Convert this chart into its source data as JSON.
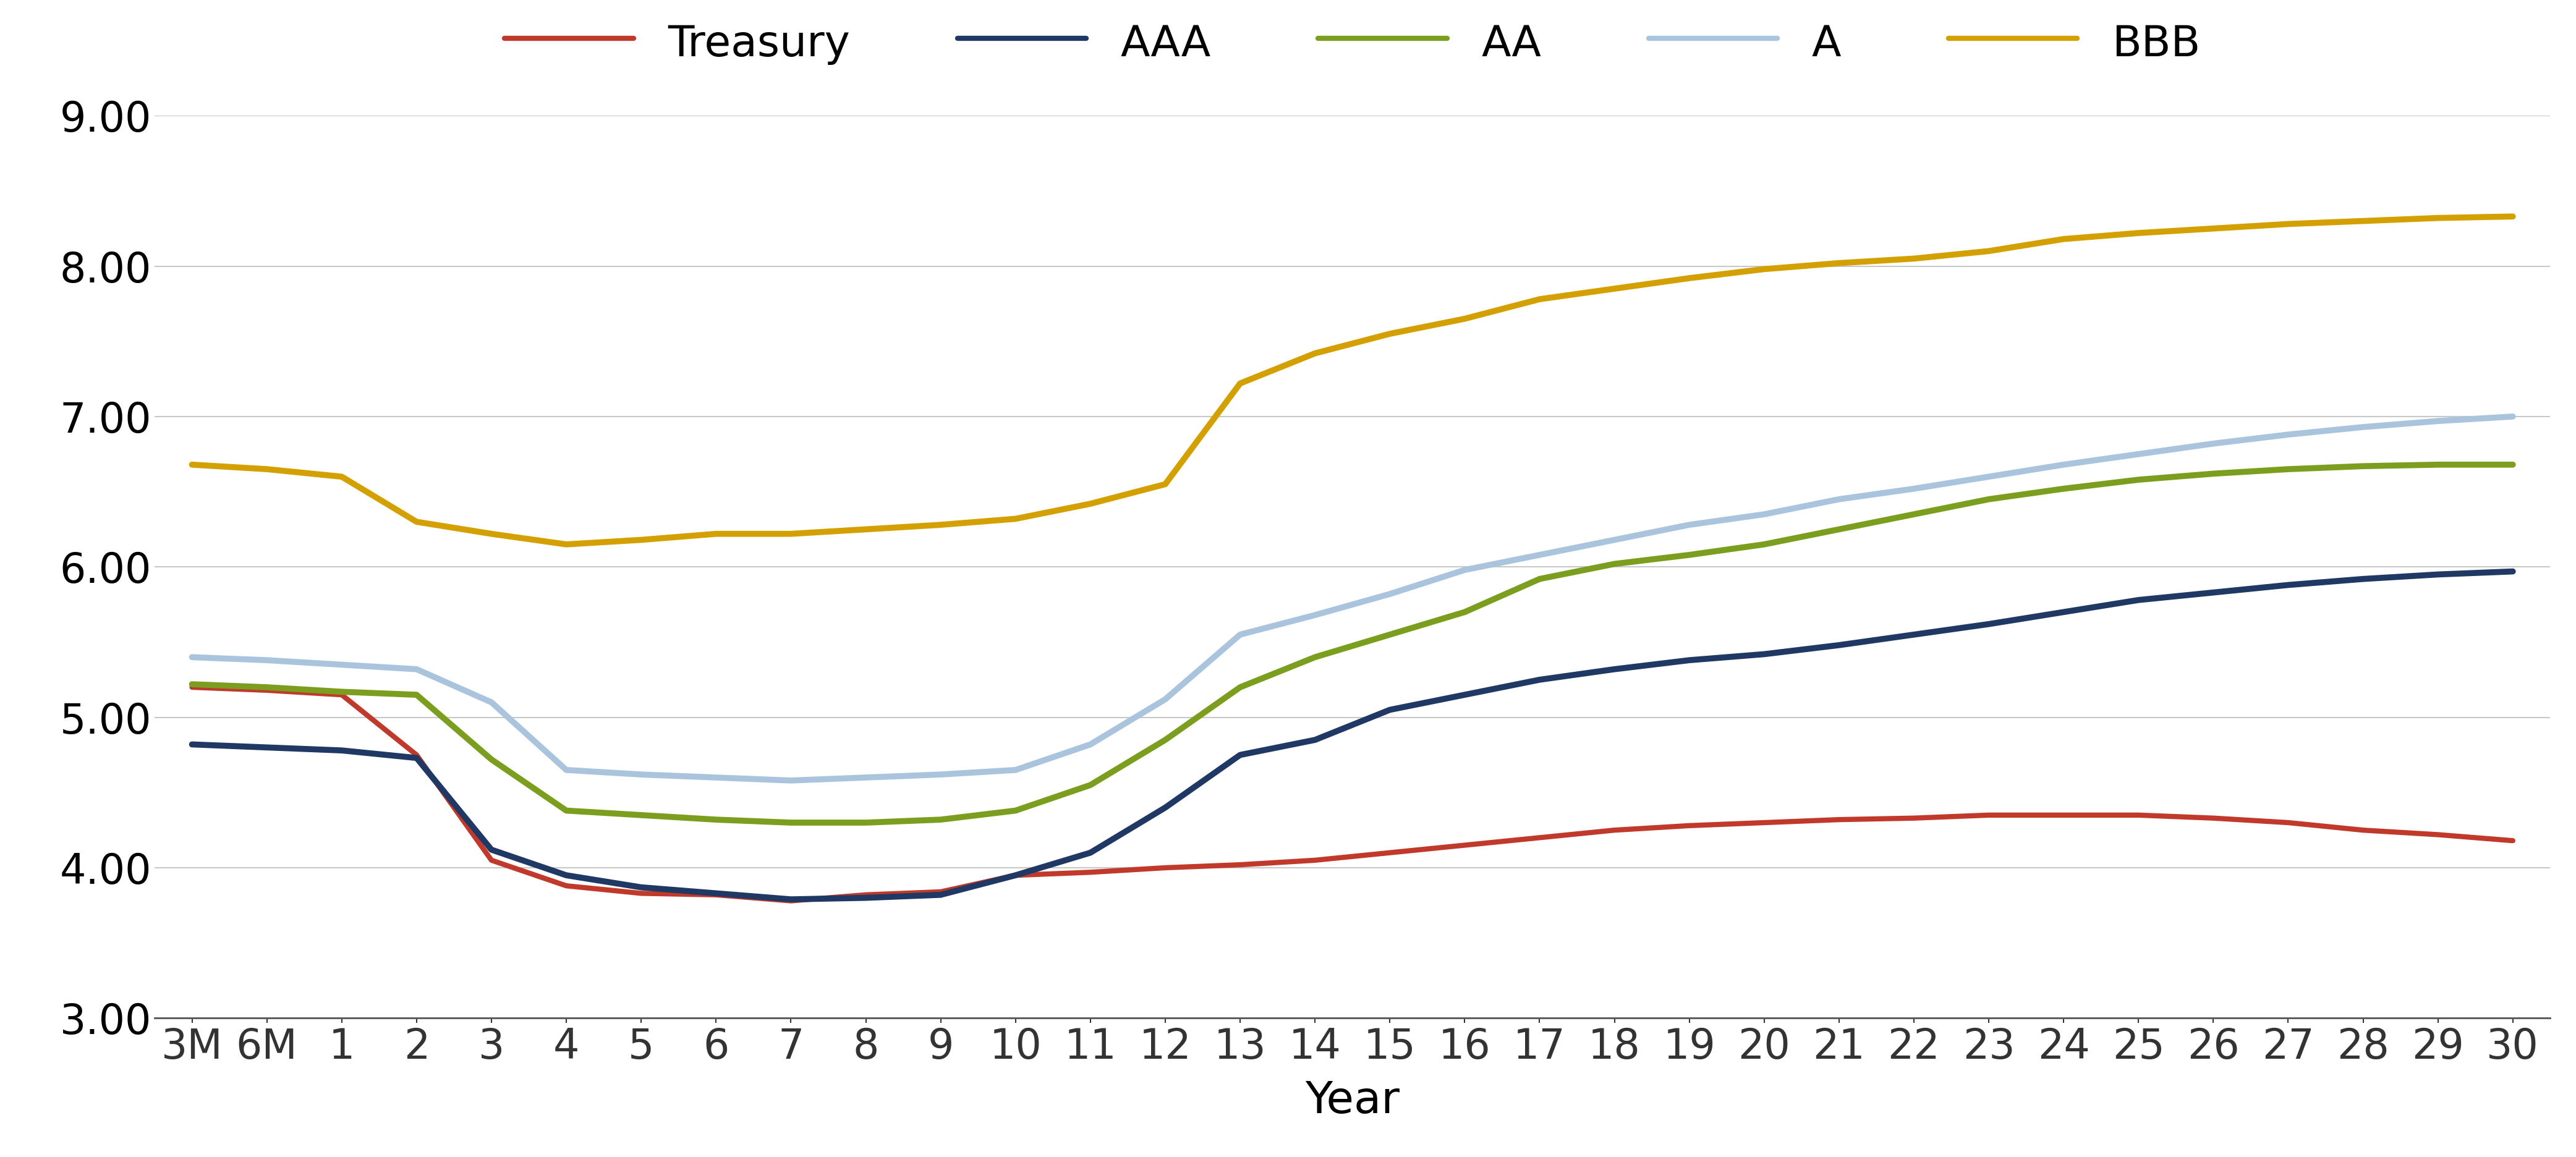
{
  "xlabel": "Year",
  "x_labels": [
    "3M",
    "6M",
    "1",
    "2",
    "3",
    "4",
    "5",
    "6",
    "7",
    "8",
    "9",
    "10",
    "11",
    "12",
    "13",
    "14",
    "15",
    "16",
    "17",
    "18",
    "19",
    "20",
    "21",
    "22",
    "23",
    "24",
    "25",
    "26",
    "27",
    "28",
    "29",
    "30"
  ],
  "ylim": [
    3.0,
    9.0
  ],
  "yticks": [
    3.0,
    4.0,
    5.0,
    6.0,
    7.0,
    8.0,
    9.0
  ],
  "series": {
    "Treasury": {
      "color": "#C0392B",
      "linewidth": 6.0,
      "values": [
        5.2,
        5.18,
        5.15,
        4.75,
        4.05,
        3.88,
        3.83,
        3.82,
        3.78,
        3.82,
        3.84,
        3.95,
        3.97,
        4.0,
        4.02,
        4.05,
        4.1,
        4.15,
        4.2,
        4.25,
        4.28,
        4.3,
        4.32,
        4.33,
        4.35,
        4.35,
        4.35,
        4.33,
        4.3,
        4.25,
        4.22,
        4.18
      ]
    },
    "AAA": {
      "color": "#1F3864",
      "linewidth": 7.0,
      "values": [
        4.82,
        4.8,
        4.78,
        4.73,
        4.12,
        3.95,
        3.87,
        3.83,
        3.79,
        3.8,
        3.82,
        3.95,
        4.1,
        4.4,
        4.75,
        4.85,
        5.05,
        5.15,
        5.25,
        5.32,
        5.38,
        5.42,
        5.48,
        5.55,
        5.62,
        5.7,
        5.78,
        5.83,
        5.88,
        5.92,
        5.95,
        5.97
      ]
    },
    "AA": {
      "color": "#7B9E1E",
      "linewidth": 7.0,
      "values": [
        5.22,
        5.2,
        5.17,
        5.15,
        4.72,
        4.38,
        4.35,
        4.32,
        4.3,
        4.3,
        4.32,
        4.38,
        4.55,
        4.85,
        5.2,
        5.4,
        5.55,
        5.7,
        5.92,
        6.02,
        6.08,
        6.15,
        6.25,
        6.35,
        6.45,
        6.52,
        6.58,
        6.62,
        6.65,
        6.67,
        6.68,
        6.68
      ]
    },
    "A": {
      "color": "#A9C4DC",
      "linewidth": 7.0,
      "values": [
        5.4,
        5.38,
        5.35,
        5.32,
        5.1,
        4.65,
        4.62,
        4.6,
        4.58,
        4.6,
        4.62,
        4.65,
        4.82,
        5.12,
        5.55,
        5.68,
        5.82,
        5.98,
        6.08,
        6.18,
        6.28,
        6.35,
        6.45,
        6.52,
        6.6,
        6.68,
        6.75,
        6.82,
        6.88,
        6.93,
        6.97,
        7.0
      ]
    },
    "BBB": {
      "color": "#D4A000",
      "linewidth": 7.0,
      "values": [
        6.68,
        6.65,
        6.6,
        6.3,
        6.22,
        6.15,
        6.18,
        6.22,
        6.22,
        6.25,
        6.28,
        6.32,
        6.42,
        6.55,
        7.22,
        7.42,
        7.55,
        7.65,
        7.78,
        7.85,
        7.92,
        7.98,
        8.02,
        8.05,
        8.1,
        8.18,
        8.22,
        8.25,
        8.28,
        8.3,
        8.32,
        8.33
      ]
    }
  },
  "legend_order": [
    "Treasury",
    "AAA",
    "AA",
    "A",
    "BBB"
  ],
  "background_color": "#FFFFFF",
  "grid_color": "#C8C8C8",
  "axis_label_fontsize": 52,
  "tick_fontsize": 48,
  "legend_fontsize": 50
}
